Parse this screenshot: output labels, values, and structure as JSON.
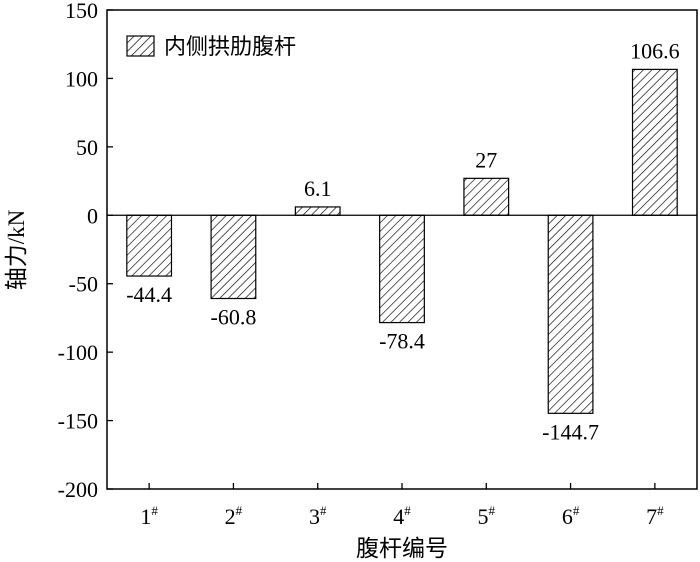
{
  "chart_data": {
    "type": "bar",
    "categories": [
      "1",
      "2",
      "3",
      "4",
      "5",
      "6",
      "7"
    ],
    "category_superscript": "#",
    "series": [
      {
        "name": "内侧拱肋腹杆",
        "values": [
          -44.4,
          -60.8,
          6.1,
          -78.4,
          27,
          -144.7,
          106.6
        ]
      }
    ],
    "data_labels": [
      "-44.4",
      "-60.8",
      "6.1",
      "-78.4",
      "27",
      "-144.7",
      "106.6"
    ],
    "ylim": [
      -200,
      150
    ],
    "yticks": [
      150,
      100,
      50,
      0,
      -50,
      -100,
      -150,
      -200
    ],
    "xlabel": "腹杆编号",
    "ylabel": "轴力/kN",
    "legend": "top-left",
    "grid": false,
    "bar_pattern": "diagonal-hatch",
    "colors": {
      "axis": "#000000",
      "bar_fill": "#ffffff",
      "hatch": "#000000"
    }
  }
}
